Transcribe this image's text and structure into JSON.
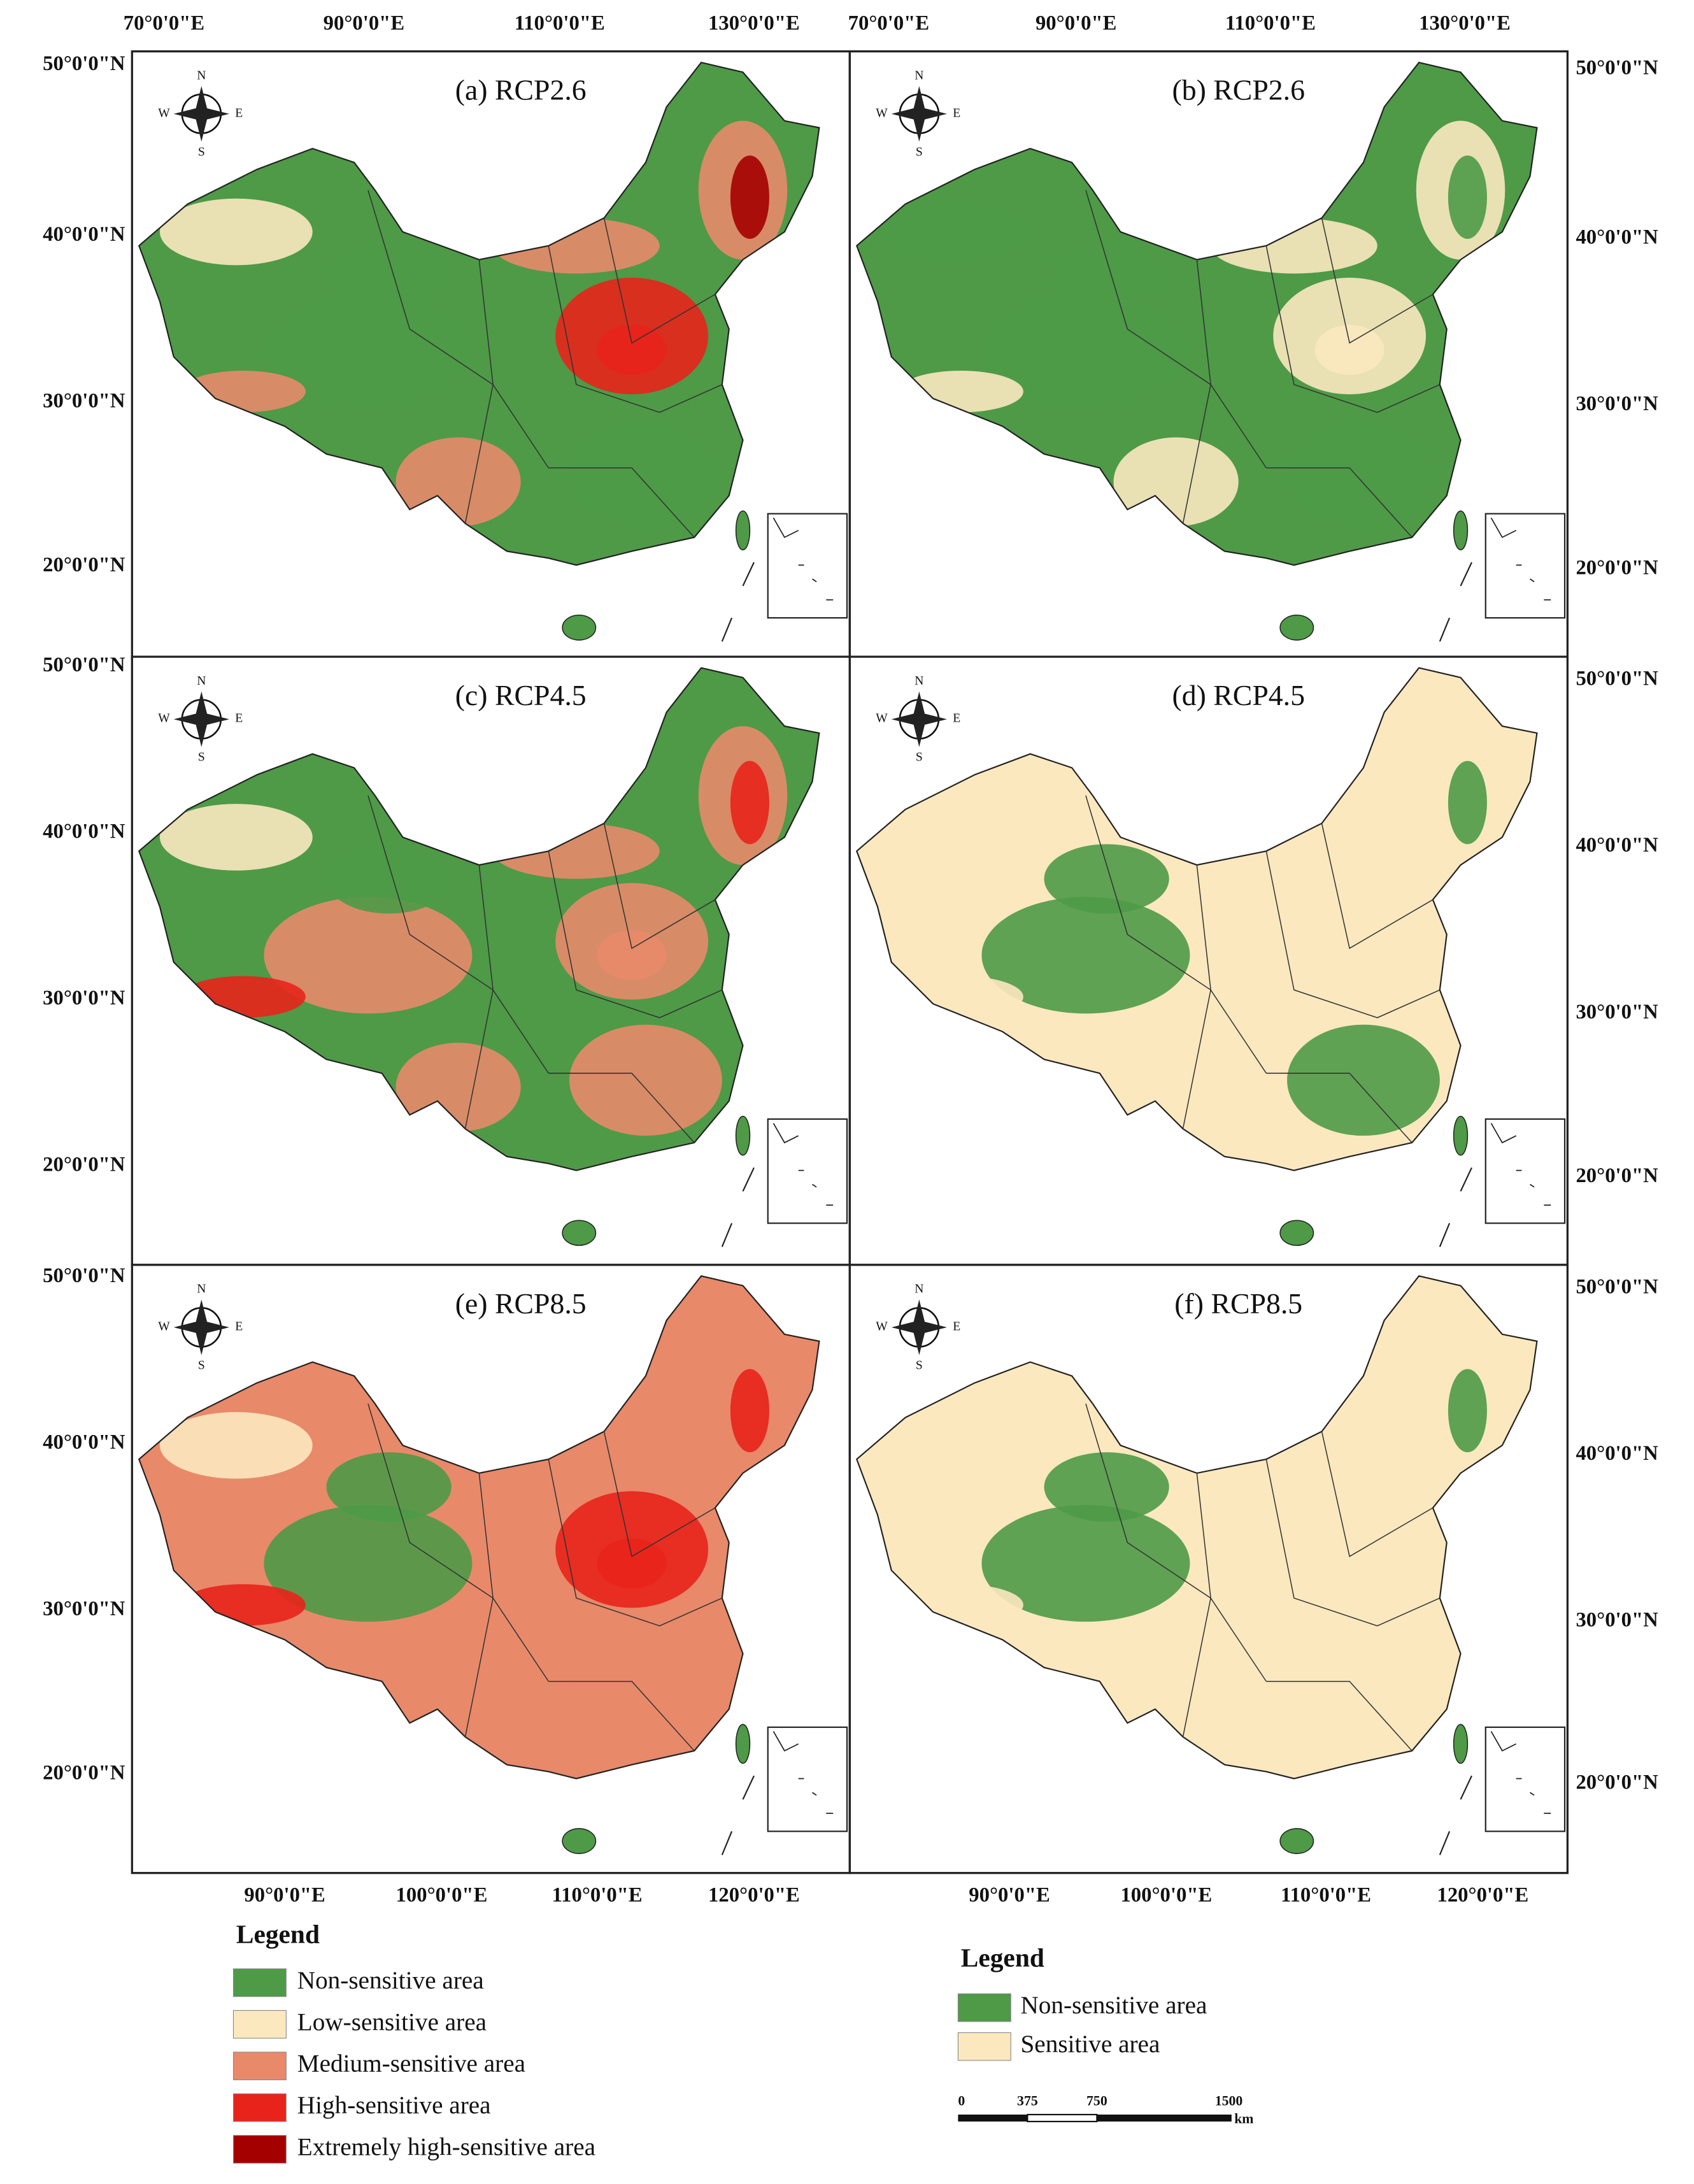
{
  "top_axis_labels": [
    "70°0'0\"E",
    "90°0'0\"E",
    "110°0'0\"E",
    "130°0'0\"E"
  ],
  "bottom_axis_labels": [
    "90°0'0\"E",
    "100°0'0\"E",
    "110°0'0\"E",
    "120°0'0\"E"
  ],
  "lat_labels": [
    "50°0'0\"N",
    "40°0'0\"N",
    "30°0'0\"N",
    "20°0'0\"N"
  ],
  "compass": {
    "n": "N",
    "s": "S",
    "e": "E",
    "w": "W"
  },
  "panels": [
    {
      "title": "(a) RCP2.6"
    },
    {
      "title": "(b) RCP2.6"
    },
    {
      "title": "(c) RCP4.5"
    },
    {
      "title": "(d) RCP4.5"
    },
    {
      "title": "(e) RCP8.5"
    },
    {
      "title": "(f) RCP8.5"
    }
  ],
  "legend_left": {
    "title": "Legend",
    "items": [
      {
        "label": "Non-sensitive area",
        "color": "#4e9a47"
      },
      {
        "label": "Low-sensitive area",
        "color": "#fbe8bf"
      },
      {
        "label": "Medium-sensitive area",
        "color": "#e8896a"
      },
      {
        "label": "High-sensitive area",
        "color": "#e8231b"
      },
      {
        "label": "Extremely high-sensitive area",
        "color": "#a50000"
      }
    ]
  },
  "legend_right": {
    "title": "Legend",
    "items": [
      {
        "label": "Non-sensitive area",
        "color": "#4e9a47"
      },
      {
        "label": "Sensitive area",
        "color": "#fbe8bf"
      }
    ]
  },
  "scale_bar": {
    "labels": [
      "0",
      "375",
      "750",
      "1500"
    ],
    "unit": "km"
  }
}
